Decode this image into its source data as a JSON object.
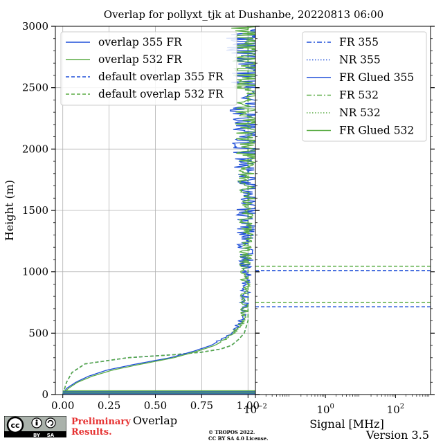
{
  "figure": {
    "title": "Overlap for pollyxt_tjk at Dushanbe, 20220813 06:00",
    "preliminary_line1": "Preliminary",
    "preliminary_line2": "Results.",
    "copyright_line1": "© TROPOS 2022.",
    "copyright_line2": "CC BY SA 4.0 License.",
    "version": "Version 3.5",
    "logo": {
      "icon": "creative-commons-by-sa-logo",
      "text_cc": "cc",
      "text_by": "BY",
      "text_sa": "SA"
    }
  },
  "chart_data": [
    {
      "type": "line",
      "xlabel": "Overlap",
      "ylabel": "Height (m)",
      "xlim": [
        -0.04,
        1.04
      ],
      "ylim": [
        0,
        3000
      ],
      "xticks": [
        0.0,
        0.25,
        0.5,
        0.75,
        1.0
      ],
      "xtick_labels": [
        "0.00",
        "0.25",
        "0.50",
        "0.75",
        "1.00"
      ],
      "yticks": [
        0,
        500,
        1000,
        1500,
        2000,
        2500,
        3000
      ],
      "ytick_labels": [
        "0",
        "500",
        "1000",
        "1500",
        "2000",
        "2500",
        "3000"
      ],
      "grid": true,
      "legend_position": "top-left",
      "series": [
        {
          "name": "overlap 355 FR",
          "color": "#1f4fd8",
          "style": "solid",
          "x": [
            0.0,
            0.02,
            0.07,
            0.14,
            0.24,
            0.4,
            0.58,
            0.7,
            0.8,
            0.86,
            0.91,
            0.94,
            0.96,
            0.98,
            0.985,
            0.99,
            0.995,
            1.0
          ],
          "y": [
            0,
            50,
            100,
            150,
            200,
            250,
            300,
            350,
            400,
            450,
            500,
            550,
            600,
            700,
            900,
            1200,
            1600,
            3000
          ]
        },
        {
          "name": "overlap 532 FR",
          "color": "#5aac44",
          "style": "solid",
          "x": [
            0.0,
            0.03,
            0.08,
            0.16,
            0.27,
            0.43,
            0.6,
            0.72,
            0.82,
            0.88,
            0.92,
            0.95,
            0.97,
            0.98,
            0.985,
            0.99,
            0.995,
            1.0
          ],
          "y": [
            0,
            50,
            100,
            150,
            200,
            250,
            300,
            350,
            400,
            450,
            500,
            550,
            600,
            700,
            900,
            1200,
            1600,
            3000
          ]
        },
        {
          "name": "default overlap 355 FR",
          "color": "#1f4fd8",
          "style": "dashed",
          "x": [
            0.0,
            0.02,
            0.05,
            0.12,
            0.35,
            0.6,
            0.75,
            0.85,
            0.91,
            0.95,
            0.98,
            1.0,
            1.0
          ],
          "y": [
            0,
            100,
            180,
            250,
            300,
            325,
            345,
            370,
            400,
            450,
            500,
            600,
            3000
          ]
        },
        {
          "name": "default overlap 532 FR",
          "color": "#5aac44",
          "style": "dashed",
          "x": [
            0.0,
            0.02,
            0.05,
            0.12,
            0.35,
            0.6,
            0.75,
            0.85,
            0.91,
            0.95,
            0.98,
            1.0,
            1.0
          ],
          "y": [
            0,
            100,
            180,
            250,
            300,
            325,
            345,
            370,
            400,
            450,
            500,
            600,
            3000
          ]
        }
      ]
    },
    {
      "type": "line",
      "xlabel": "Signal [MHz]",
      "ylabel": "",
      "xscale": "log",
      "xlim": [
        0.01,
        1000
      ],
      "ylim": [
        0,
        3000
      ],
      "xticks": [
        0.01,
        1,
        100
      ],
      "xtick_labels": [
        "10−2",
        "100",
        "102"
      ],
      "grid": false,
      "legend_position": "top-right",
      "series": [
        {
          "name": "FR 355",
          "color": "#1f4fd8",
          "style": "dashdot",
          "x": [],
          "y": []
        },
        {
          "name": "NR 355",
          "color": "#1f4fd8",
          "style": "dotted",
          "x": [],
          "y": []
        },
        {
          "name": "FR Glued 355",
          "color": "#1f4fd8",
          "style": "solid",
          "x": [],
          "y": []
        },
        {
          "name": "FR 532",
          "color": "#5aac44",
          "style": "dashdot",
          "x": [],
          "y": []
        },
        {
          "name": "NR 532",
          "color": "#5aac44",
          "style": "dotted",
          "x": [],
          "y": []
        },
        {
          "name": "FR Glued 532",
          "color": "#5aac44",
          "style": "solid",
          "x": [],
          "y": []
        }
      ],
      "reference_lines": [
        {
          "color": "#1f4fd8",
          "style": "dashed",
          "y": 1010
        },
        {
          "color": "#5aac44",
          "style": "dashed",
          "y": 1045
        },
        {
          "color": "#1f4fd8",
          "style": "dashed",
          "y": 715
        },
        {
          "color": "#5aac44",
          "style": "dashed",
          "y": 750
        }
      ]
    }
  ]
}
